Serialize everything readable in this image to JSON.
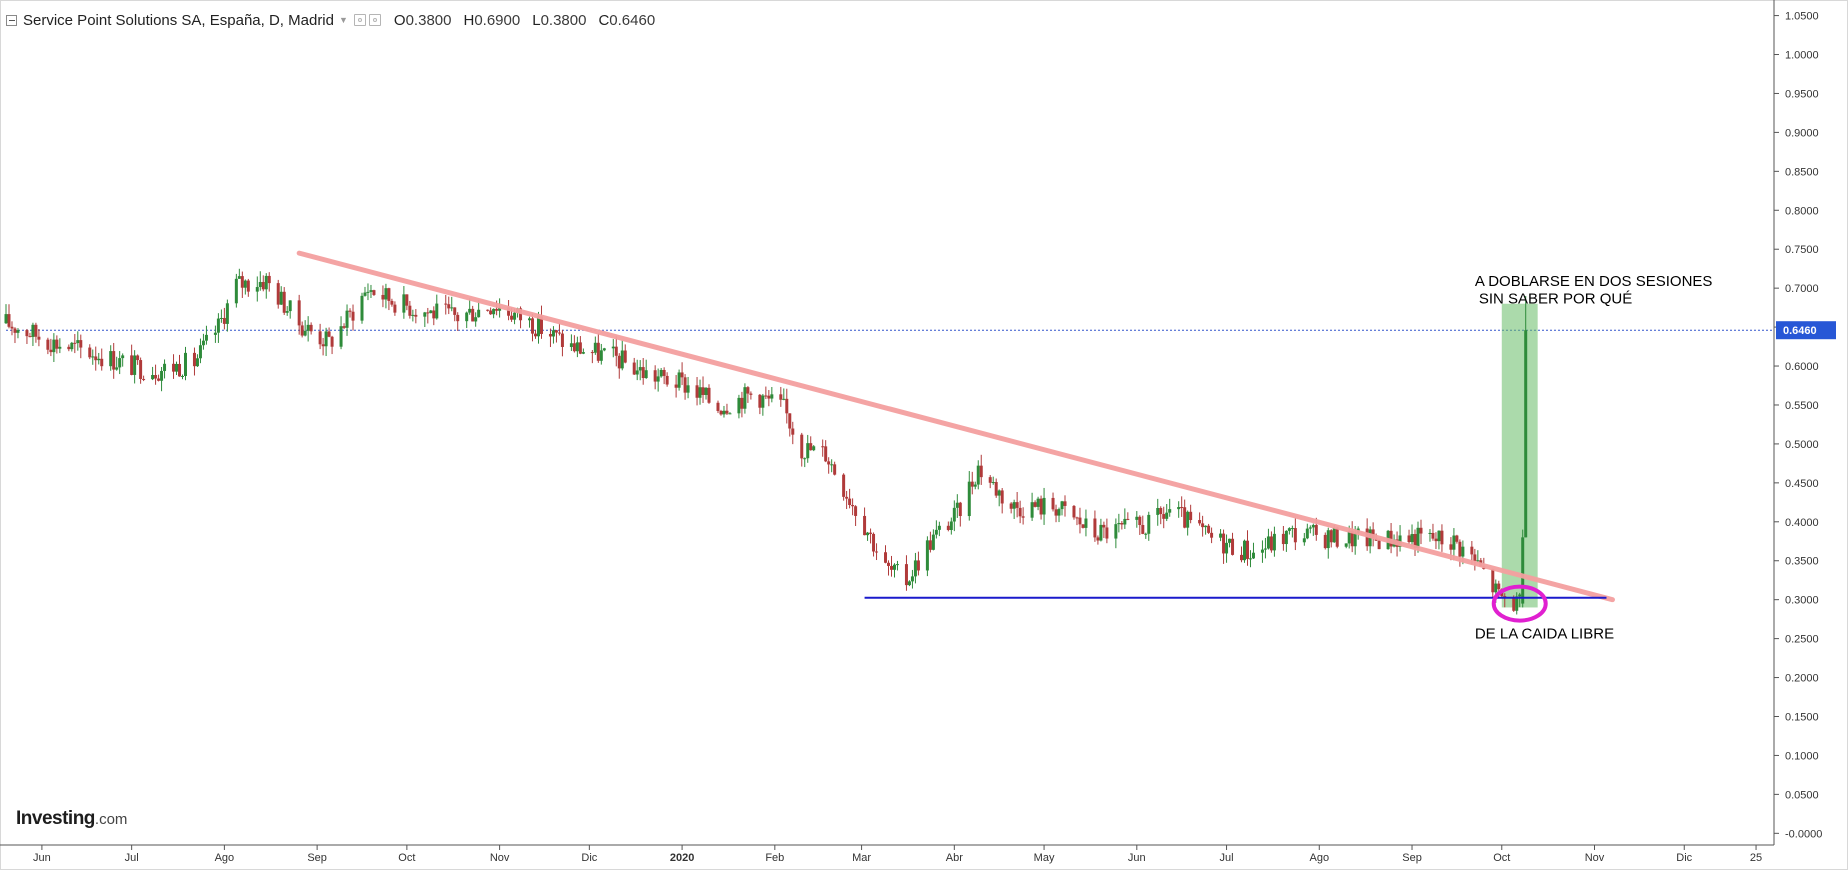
{
  "header": {
    "symbol": "Service Point Solutions SA, España, D, Madrid",
    "open_label": "O",
    "open": "0.3800",
    "high_label": "H",
    "high": "0.6900",
    "low_label": "L",
    "low": "0.3800",
    "close_label": "C",
    "close": "0.6460"
  },
  "branding": {
    "name": "Investing",
    "suffix": ".com"
  },
  "colors": {
    "up": "#2e8b3a",
    "down": "#b03a3a",
    "trendline": "#f4a0a0",
    "support": "#1a1acc",
    "price_line": "#3355cc",
    "last_price_label_bg": "#2757d6",
    "highlight": "#66bb66",
    "circle": "#e020d0"
  },
  "chart_data": {
    "type": "candlestick",
    "instrument": "Service Point Solutions SA",
    "x_tick_labels": [
      "Jun",
      "Jul",
      "Ago",
      "Sep",
      "Oct",
      "Nov",
      "Dic",
      "2020",
      "Feb",
      "Mar",
      "Abr",
      "May",
      "Jun",
      "Jul",
      "Ago",
      "Sep",
      "Oct",
      "Nov",
      "Dic",
      "25"
    ],
    "x_range": [
      "2019-05-20",
      "2020-12-31"
    ],
    "y_ticks": [
      "1.0500",
      "1.0000",
      "0.9500",
      "0.9000",
      "0.8500",
      "0.8000",
      "0.7500",
      "0.7000",
      "0.6500",
      "0.6000",
      "0.5500",
      "0.5000",
      "0.4500",
      "0.4000",
      "0.3500",
      "0.3000",
      "0.2500",
      "0.2000",
      "0.1500",
      "0.1000",
      "0.0500",
      "-0.0000"
    ],
    "ylim": [
      -0.015,
      1.07
    ],
    "last_price": "0.6460",
    "price_path": [
      [
        "2019-05-20",
        0.655
      ],
      [
        "2019-05-27",
        0.645
      ],
      [
        "2019-06-05",
        0.63
      ],
      [
        "2019-06-20",
        0.615
      ],
      [
        "2019-07-01",
        0.6
      ],
      [
        "2019-07-10",
        0.595
      ],
      [
        "2019-07-22",
        0.605
      ],
      [
        "2019-07-30",
        0.65
      ],
      [
        "2019-08-05",
        0.705
      ],
      [
        "2019-08-15",
        0.71
      ],
      [
        "2019-08-26",
        0.655
      ],
      [
        "2019-09-05",
        0.63
      ],
      [
        "2019-09-12",
        0.665
      ],
      [
        "2019-09-18",
        0.7
      ],
      [
        "2019-09-26",
        0.685
      ],
      [
        "2019-10-05",
        0.672
      ],
      [
        "2019-10-18",
        0.663
      ],
      [
        "2019-10-30",
        0.68
      ],
      [
        "2019-11-12",
        0.655
      ],
      [
        "2019-11-25",
        0.625
      ],
      [
        "2019-12-10",
        0.61
      ],
      [
        "2019-12-20",
        0.59
      ],
      [
        "2020-01-03",
        0.575
      ],
      [
        "2020-01-13",
        0.548
      ],
      [
        "2020-01-25",
        0.565
      ],
      [
        "2020-02-04",
        0.545
      ],
      [
        "2020-02-10",
        0.495
      ],
      [
        "2020-02-18",
        0.488
      ],
      [
        "2020-02-24",
        0.445
      ],
      [
        "2020-03-03",
        0.39
      ],
      [
        "2020-03-09",
        0.34
      ],
      [
        "2020-03-16",
        0.325
      ],
      [
        "2020-03-24",
        0.375
      ],
      [
        "2020-04-02",
        0.41
      ],
      [
        "2020-04-09",
        0.47
      ],
      [
        "2020-04-20",
        0.42
      ],
      [
        "2020-05-05",
        0.42
      ],
      [
        "2020-05-18",
        0.385
      ],
      [
        "2020-06-05",
        0.395
      ],
      [
        "2020-06-12",
        0.415
      ],
      [
        "2020-06-25",
        0.38
      ],
      [
        "2020-07-10",
        0.36
      ],
      [
        "2020-07-22",
        0.385
      ],
      [
        "2020-08-05",
        0.38
      ],
      [
        "2020-08-20",
        0.378
      ],
      [
        "2020-09-05",
        0.38
      ],
      [
        "2020-09-15",
        0.375
      ],
      [
        "2020-09-21",
        0.355
      ],
      [
        "2020-09-25",
        0.335
      ],
      [
        "2020-09-30",
        0.305
      ],
      [
        "2020-10-07",
        0.293
      ],
      [
        "2020-10-08",
        0.38
      ],
      [
        "2020-10-09",
        0.646
      ]
    ],
    "annotations": [
      {
        "kind": "trendline",
        "from": [
          "2019-08-26",
          0.745
        ],
        "to": [
          "2020-11-07",
          0.3
        ]
      },
      {
        "kind": "support_line",
        "from": [
          "2020-03-02",
          0.3025
        ],
        "to": [
          "2020-11-05",
          0.3025
        ]
      },
      {
        "kind": "highlight_rect",
        "from": [
          "2020-10-01",
          0.29
        ],
        "to": [
          "2020-10-13",
          0.68
        ]
      },
      {
        "kind": "circle",
        "center": [
          "2020-10-07",
          0.295
        ]
      },
      {
        "kind": "horizontal_price_line",
        "value": 0.646
      }
    ],
    "annotation_texts": {
      "top_line1": "A DOBLARSE EN DOS SESIONES",
      "top_line2": "SIN SABER POR QUÉ",
      "bottom": "DE LA CAIDA LIBRE"
    }
  }
}
